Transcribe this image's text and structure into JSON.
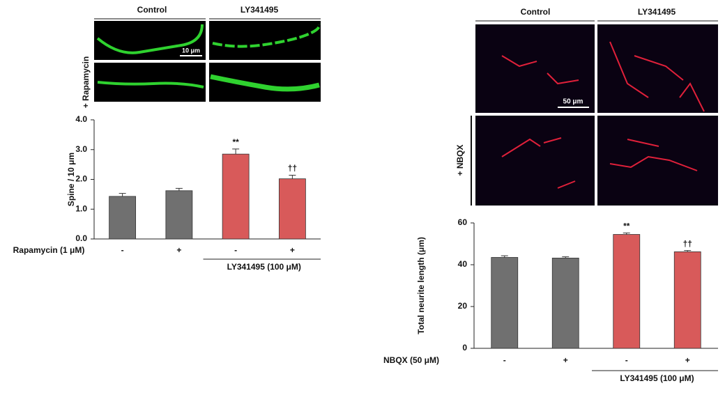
{
  "panels": [
    {
      "columns": [
        "Control",
        "LY341495"
      ],
      "row_label": "+ Rapamycin",
      "scale_bar": "10 μm"
    },
    {
      "columns": [
        "Control",
        "LY341495"
      ],
      "row_label": "+ NBQX",
      "scale_bar": "50 μm"
    }
  ],
  "chart_data": [
    {
      "type": "bar",
      "ylabel": "Spine / 10 μm",
      "xlabel": "Rapamycin (1 μM)",
      "group_label": "LY341495 (100 μM)",
      "categories": [
        "-",
        "+",
        "-",
        "+"
      ],
      "values": [
        1.43,
        1.62,
        2.85,
        2.02
      ],
      "errors": [
        0.1,
        0.08,
        0.17,
        0.12
      ],
      "annotations": [
        null,
        null,
        "**",
        "††"
      ],
      "colors": [
        "#707070",
        "#707070",
        "#d85a5a",
        "#d85a5a"
      ],
      "ylim": [
        0,
        4
      ],
      "yticks": [
        {
          "value": 0,
          "label": "0.0"
        },
        {
          "value": 1,
          "label": "1.0"
        },
        {
          "value": 2,
          "label": "2.0"
        },
        {
          "value": 3,
          "label": "3.0"
        },
        {
          "value": 4,
          "label": "4.0"
        }
      ]
    },
    {
      "type": "bar",
      "ylabel": "Total neurite length (μm)",
      "xlabel": "NBQX (50 μM)",
      "group_label": "LY341495 (100 μM)",
      "categories": [
        "-",
        "+",
        "-",
        "+"
      ],
      "values": [
        43.5,
        43.2,
        54.5,
        46.2
      ],
      "errors": [
        0.8,
        0.6,
        0.7,
        0.6
      ],
      "annotations": [
        null,
        null,
        "**",
        "††"
      ],
      "colors": [
        "#707070",
        "#707070",
        "#d85a5a",
        "#d85a5a"
      ],
      "ylim": [
        0,
        60
      ],
      "yticks": [
        0,
        20,
        40,
        60
      ]
    }
  ]
}
